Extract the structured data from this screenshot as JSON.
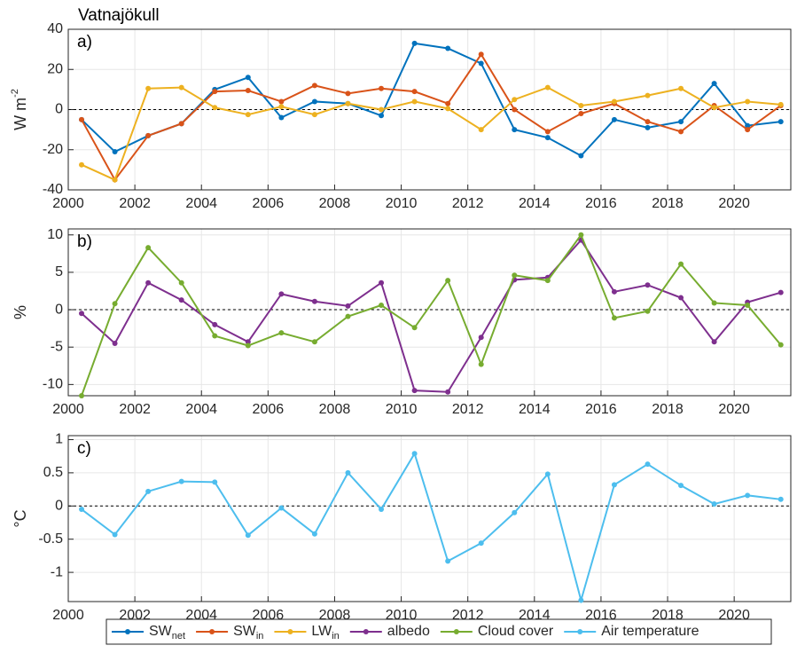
{
  "chart_data": [
    {
      "type": "line",
      "title": "Vatnajökull",
      "panel_label": "a)",
      "ylabel": "W m",
      "ylabel_sup": "-2",
      "x": [
        2000.4,
        2001.4,
        2002.4,
        2003.4,
        2004.4,
        2005.4,
        2006.4,
        2007.4,
        2008.4,
        2009.4,
        2010.4,
        2011.4,
        2012.4,
        2013.4,
        2014.4,
        2015.4,
        2016.4,
        2017.4,
        2018.4,
        2019.4,
        2020.4,
        2021.4
      ],
      "xlim": [
        2000,
        2021.7
      ],
      "xticks": [
        2000,
        2002,
        2004,
        2006,
        2008,
        2010,
        2012,
        2014,
        2016,
        2018,
        2020
      ],
      "ylim": [
        -40,
        40
      ],
      "yticks": [
        -40,
        -20,
        0,
        20,
        40
      ],
      "grid": true,
      "reference_line": 0,
      "series": [
        {
          "name": "SW",
          "subscript": "net",
          "color": "#0072bd",
          "values": [
            -5,
            -21,
            -13,
            -7,
            10,
            16,
            -4,
            4,
            3,
            -3,
            33,
            30.5,
            23,
            -10,
            -14,
            -23,
            -5,
            -9,
            -6,
            13,
            -8,
            -6
          ]
        },
        {
          "name": "SW",
          "subscript": "in",
          "color": "#d95319",
          "values": [
            -5,
            -35,
            -13,
            -7,
            9,
            9.5,
            4,
            12,
            8,
            10.5,
            9,
            3,
            27.5,
            0,
            -11,
            -2,
            3,
            -6,
            -11,
            2,
            -10,
            2
          ]
        },
        {
          "name": "LW",
          "subscript": "in",
          "color": "#edb120",
          "values": [
            -27.5,
            -35,
            10.5,
            11,
            1,
            -2.5,
            1.5,
            -2.5,
            3,
            0,
            4,
            0.5,
            -10,
            5,
            11,
            2,
            4,
            7,
            10.5,
            1,
            4,
            2.5
          ]
        }
      ]
    },
    {
      "type": "line",
      "panel_label": "b)",
      "ylabel": "%",
      "x": [
        2000.4,
        2001.4,
        2002.4,
        2003.4,
        2004.4,
        2005.4,
        2006.4,
        2007.4,
        2008.4,
        2009.4,
        2010.4,
        2011.4,
        2012.4,
        2013.4,
        2014.4,
        2015.4,
        2016.4,
        2017.4,
        2018.4,
        2019.4,
        2020.4,
        2021.4
      ],
      "xlim": [
        2000,
        2021.7
      ],
      "xticks": [
        2000,
        2002,
        2004,
        2006,
        2008,
        2010,
        2012,
        2014,
        2016,
        2018,
        2020
      ],
      "ylim": [
        -11.5,
        10.8
      ],
      "yticks": [
        -10,
        -5,
        0,
        5,
        10
      ],
      "grid": true,
      "reference_line": 0,
      "series": [
        {
          "name": "albedo",
          "color": "#7e2f8e",
          "values": [
            -0.5,
            -4.5,
            3.6,
            1.3,
            -2,
            -4.3,
            2.1,
            1.1,
            0.5,
            3.6,
            -10.8,
            -11,
            -3.7,
            4,
            4.3,
            9.3,
            2.4,
            3.3,
            1.6,
            -4.3,
            1,
            2.3
          ]
        },
        {
          "name": "Cloud cover",
          "color": "#77ac30",
          "values": [
            -11.5,
            0.8,
            8.3,
            3.6,
            -3.5,
            -4.8,
            -3.1,
            -4.3,
            -0.9,
            0.6,
            -2.4,
            3.9,
            -7.3,
            4.6,
            3.9,
            10,
            -1.1,
            -0.2,
            6.1,
            0.9,
            0.6,
            -4.7
          ]
        }
      ]
    },
    {
      "type": "line",
      "panel_label": "c)",
      "ylabel": "°C",
      "x": [
        2000.4,
        2001.4,
        2002.4,
        2003.4,
        2004.4,
        2005.4,
        2006.4,
        2007.4,
        2008.4,
        2009.4,
        2010.4,
        2011.4,
        2012.4,
        2013.4,
        2014.4,
        2015.4,
        2016.4,
        2017.4,
        2018.4,
        2019.4,
        2020.4,
        2021.4
      ],
      "xlim": [
        2000,
        2021.7
      ],
      "xticks": [
        2000,
        2002,
        2004,
        2006,
        2008,
        2010,
        2012,
        2014,
        2016,
        2018,
        2020
      ],
      "ylim": [
        -1.44,
        1.06
      ],
      "yticks": [
        -1,
        -0.5,
        0,
        0.5,
        1
      ],
      "grid": true,
      "reference_line": 0,
      "series": [
        {
          "name": "Air temperature",
          "color": "#4dbeee",
          "values": [
            -0.05,
            -0.43,
            0.22,
            0.37,
            0.36,
            -0.44,
            -0.03,
            -0.42,
            0.5,
            -0.05,
            0.79,
            -0.83,
            -0.56,
            -0.1,
            0.48,
            -1.42,
            0.32,
            0.63,
            0.31,
            0.03,
            0.16,
            0.1
          ]
        }
      ]
    }
  ]
}
